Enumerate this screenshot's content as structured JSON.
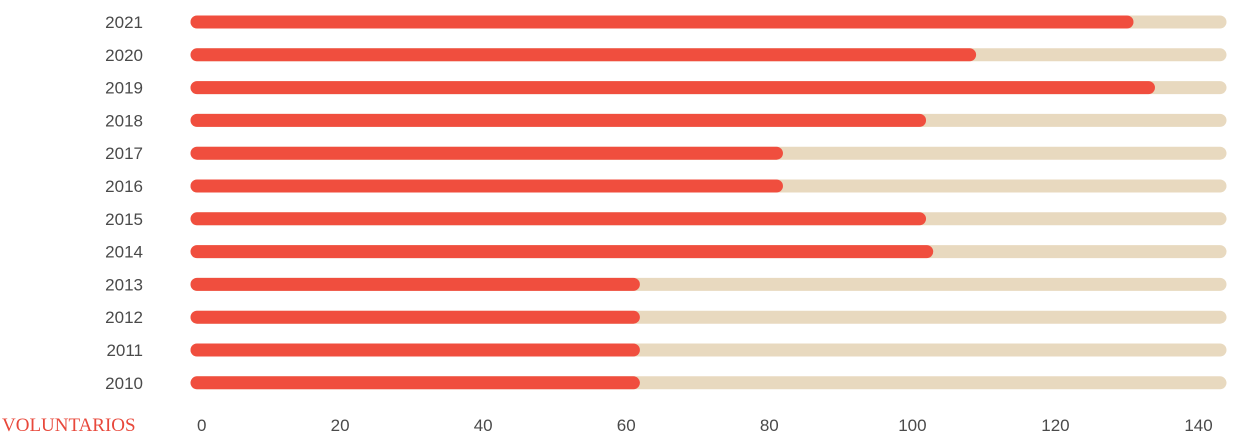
{
  "chart_data": {
    "type": "bar",
    "orientation": "horizontal",
    "xlabel": "VOLUNTARIOS",
    "xlim": [
      0,
      143
    ],
    "x_ticks": [
      "0",
      "20",
      "40",
      "60",
      "80",
      "100",
      "120",
      "140"
    ],
    "categories": [
      "2021",
      "2020",
      "2019",
      "2018",
      "2017",
      "2016",
      "2015",
      "2014",
      "2013",
      "2012",
      "2011",
      "2010"
    ],
    "values": [
      130,
      108,
      133,
      101,
      81,
      81,
      101,
      102,
      61,
      61,
      61,
      61
    ],
    "grid": false,
    "legend": "none",
    "colors": {
      "bar": "#f04e3e",
      "track": "#e8d9bf"
    }
  }
}
